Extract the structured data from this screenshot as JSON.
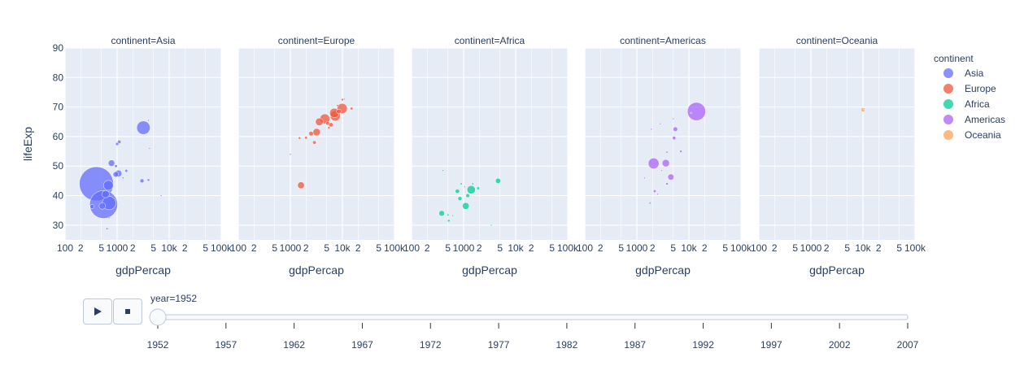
{
  "chart_data": {
    "type": "scatter",
    "subtype": "bubble, faceted by continent, log x-axis",
    "x_field": "gdpPercap",
    "y_field": "lifeExp",
    "xlabel": "gdpPercap",
    "ylabel": "lifeExp",
    "x_scale": "log",
    "xlim": [
      100,
      100000
    ],
    "ylim": [
      25,
      90
    ],
    "y_ticks": [
      30,
      40,
      50,
      60,
      70,
      80,
      90
    ],
    "x_tick_labels": [
      {
        "value": 100,
        "label": "100"
      },
      {
        "value": 200,
        "label": "2"
      },
      {
        "value": 500,
        "label": "5"
      },
      {
        "value": 1000,
        "label": "1000"
      },
      {
        "value": 2000,
        "label": "2"
      },
      {
        "value": 5000,
        "label": "5"
      },
      {
        "value": 10000,
        "label": "10k"
      },
      {
        "value": 20000,
        "label": "2"
      },
      {
        "value": 50000,
        "label": "5"
      },
      {
        "value": 100000,
        "label": "100k"
      }
    ],
    "grid": true,
    "legend_title": "continent",
    "legend_position": "right",
    "facets": [
      {
        "title": "continent=Asia",
        "continent": "Asia",
        "color": "#636efa",
        "points": [
          {
            "x": 400,
            "y": 44,
            "pop": 556
          },
          {
            "x": 550,
            "y": 37,
            "pop": 372
          },
          {
            "x": 700,
            "y": 37.5,
            "pop": 87
          },
          {
            "x": 680,
            "y": 43.5,
            "pop": 46
          },
          {
            "x": 520,
            "y": 36.5,
            "pop": 20
          },
          {
            "x": 600,
            "y": 40.5,
            "pop": 26
          },
          {
            "x": 330,
            "y": 36.3,
            "pop": 8
          },
          {
            "x": 780,
            "y": 51,
            "pop": 20
          },
          {
            "x": 1060,
            "y": 47.5,
            "pop": 22
          },
          {
            "x": 940,
            "y": 47.2,
            "pop": 14
          },
          {
            "x": 1100,
            "y": 58.2,
            "pop": 6
          },
          {
            "x": 1000,
            "y": 57.5,
            "pop": 5
          },
          {
            "x": 950,
            "y": 50,
            "pop": 4
          },
          {
            "x": 1300,
            "y": 46,
            "pop": 1.5
          },
          {
            "x": 1500,
            "y": 48.4,
            "pop": 4
          },
          {
            "x": 3200,
            "y": 63,
            "pop": 86
          },
          {
            "x": 3000,
            "y": 45,
            "pop": 8
          },
          {
            "x": 4000,
            "y": 45.3,
            "pop": 3
          },
          {
            "x": 7000,
            "y": 40,
            "pop": 1
          },
          {
            "x": 700,
            "y": 32.5,
            "pop": 1
          },
          {
            "x": 640,
            "y": 28.8,
            "pop": 2
          },
          {
            "x": 4200,
            "y": 56,
            "pop": 0.5
          },
          {
            "x": 4000,
            "y": 65.5,
            "pop": 0.3
          }
        ]
      },
      {
        "title": "continent=Europe",
        "continent": "Europe",
        "color": "#ef553b",
        "points": [
          {
            "x": 1600,
            "y": 43.5,
            "pop": 22
          },
          {
            "x": 1000,
            "y": 54,
            "pop": 1.3
          },
          {
            "x": 1500,
            "y": 59.5,
            "pop": 3
          },
          {
            "x": 2000,
            "y": 59.6,
            "pop": 4
          },
          {
            "x": 2500,
            "y": 61,
            "pop": 10
          },
          {
            "x": 3200,
            "y": 61.5,
            "pop": 26
          },
          {
            "x": 2900,
            "y": 58,
            "pop": 6
          },
          {
            "x": 3600,
            "y": 65,
            "pop": 28
          },
          {
            "x": 4600,
            "y": 66,
            "pop": 47
          },
          {
            "x": 5200,
            "y": 64.5,
            "pop": 7
          },
          {
            "x": 6000,
            "y": 64,
            "pop": 9
          },
          {
            "x": 7000,
            "y": 68,
            "pop": 42
          },
          {
            "x": 7300,
            "y": 67,
            "pop": 50
          },
          {
            "x": 8500,
            "y": 68.5,
            "pop": 10
          },
          {
            "x": 9900,
            "y": 69.5,
            "pop": 50
          },
          {
            "x": 10000,
            "y": 72.5,
            "pop": 3
          },
          {
            "x": 15000,
            "y": 69.5,
            "pop": 4
          },
          {
            "x": 5500,
            "y": 63,
            "pop": 3
          },
          {
            "x": 8000,
            "y": 70.5,
            "pop": 2
          },
          {
            "x": 11000,
            "y": 72.7,
            "pop": 0.8
          }
        ]
      },
      {
        "title": "continent=Africa",
        "continent": "Africa",
        "color": "#00cc96",
        "points": [
          {
            "x": 1400,
            "y": 42,
            "pop": 33
          },
          {
            "x": 1100,
            "y": 36.5,
            "pop": 22
          },
          {
            "x": 4600,
            "y": 45,
            "pop": 13
          },
          {
            "x": 380,
            "y": 34,
            "pop": 15
          },
          {
            "x": 760,
            "y": 41.5,
            "pop": 9
          },
          {
            "x": 850,
            "y": 39,
            "pop": 8
          },
          {
            "x": 1200,
            "y": 40,
            "pop": 7
          },
          {
            "x": 1900,
            "y": 42.5,
            "pop": 4
          },
          {
            "x": 520,
            "y": 31.5,
            "pop": 3
          },
          {
            "x": 500,
            "y": 33.5,
            "pop": 2
          },
          {
            "x": 3400,
            "y": 30,
            "pop": 1
          },
          {
            "x": 1500,
            "y": 44,
            "pop": 2
          },
          {
            "x": 400,
            "y": 48.5,
            "pop": 1
          },
          {
            "x": 900,
            "y": 44,
            "pop": 2
          },
          {
            "x": 1050,
            "y": 43,
            "pop": 1
          },
          {
            "x": 620,
            "y": 33.2,
            "pop": 1
          }
        ]
      },
      {
        "title": "continent=Americas",
        "continent": "Americas",
        "color": "#ab63fa",
        "points": [
          {
            "x": 13990,
            "y": 68.5,
            "pop": 158
          },
          {
            "x": 2100,
            "y": 50.9,
            "pop": 56
          },
          {
            "x": 3600,
            "y": 51,
            "pop": 26
          },
          {
            "x": 4500,
            "y": 46.3,
            "pop": 18
          },
          {
            "x": 5500,
            "y": 62.5,
            "pop": 10
          },
          {
            "x": 5200,
            "y": 59.5,
            "pop": 6
          },
          {
            "x": 7000,
            "y": 55,
            "pop": 3
          },
          {
            "x": 3800,
            "y": 54.7,
            "pop": 2
          },
          {
            "x": 2200,
            "y": 41.5,
            "pop": 4
          },
          {
            "x": 1800,
            "y": 37.5,
            "pop": 2
          },
          {
            "x": 2500,
            "y": 40.5,
            "pop": 1
          },
          {
            "x": 3000,
            "y": 48.5,
            "pop": 1
          },
          {
            "x": 3800,
            "y": 44,
            "pop": 3
          },
          {
            "x": 1400,
            "y": 46,
            "pop": 1
          },
          {
            "x": 2800,
            "y": 64.3,
            "pop": 0.5
          },
          {
            "x": 5000,
            "y": 66,
            "pop": 0.5
          },
          {
            "x": 1900,
            "y": 62.5,
            "pop": 0.3
          },
          {
            "x": 11000,
            "y": 68,
            "pop": 1
          }
        ]
      },
      {
        "title": "continent=Oceania",
        "continent": "Oceania",
        "color": "#ffa15a",
        "points": [
          {
            "x": 10040,
            "y": 69.1,
            "pop": 8.7
          },
          {
            "x": 10560,
            "y": 69.4,
            "pop": 1.9
          }
        ]
      }
    ],
    "legend": [
      {
        "name": "Asia",
        "color": "#636efa"
      },
      {
        "name": "Europe",
        "color": "#ef553b"
      },
      {
        "name": "Africa",
        "color": "#00cc96"
      },
      {
        "name": "Americas",
        "color": "#ab63fa"
      },
      {
        "name": "Oceania",
        "color": "#ffa15a"
      }
    ],
    "animation": {
      "current_label": "year=1952",
      "current_value": 1952,
      "steps": [
        "1952",
        "1957",
        "1962",
        "1967",
        "1972",
        "1977",
        "1982",
        "1987",
        "1992",
        "1997",
        "2002",
        "2007"
      ]
    }
  },
  "controls": {
    "play_icon": "play-icon",
    "stop_icon": "stop-icon"
  },
  "colors": {
    "plot_bg": "#e5ecf6",
    "text": "#2a3f5f",
    "grid": "#ffffff"
  }
}
